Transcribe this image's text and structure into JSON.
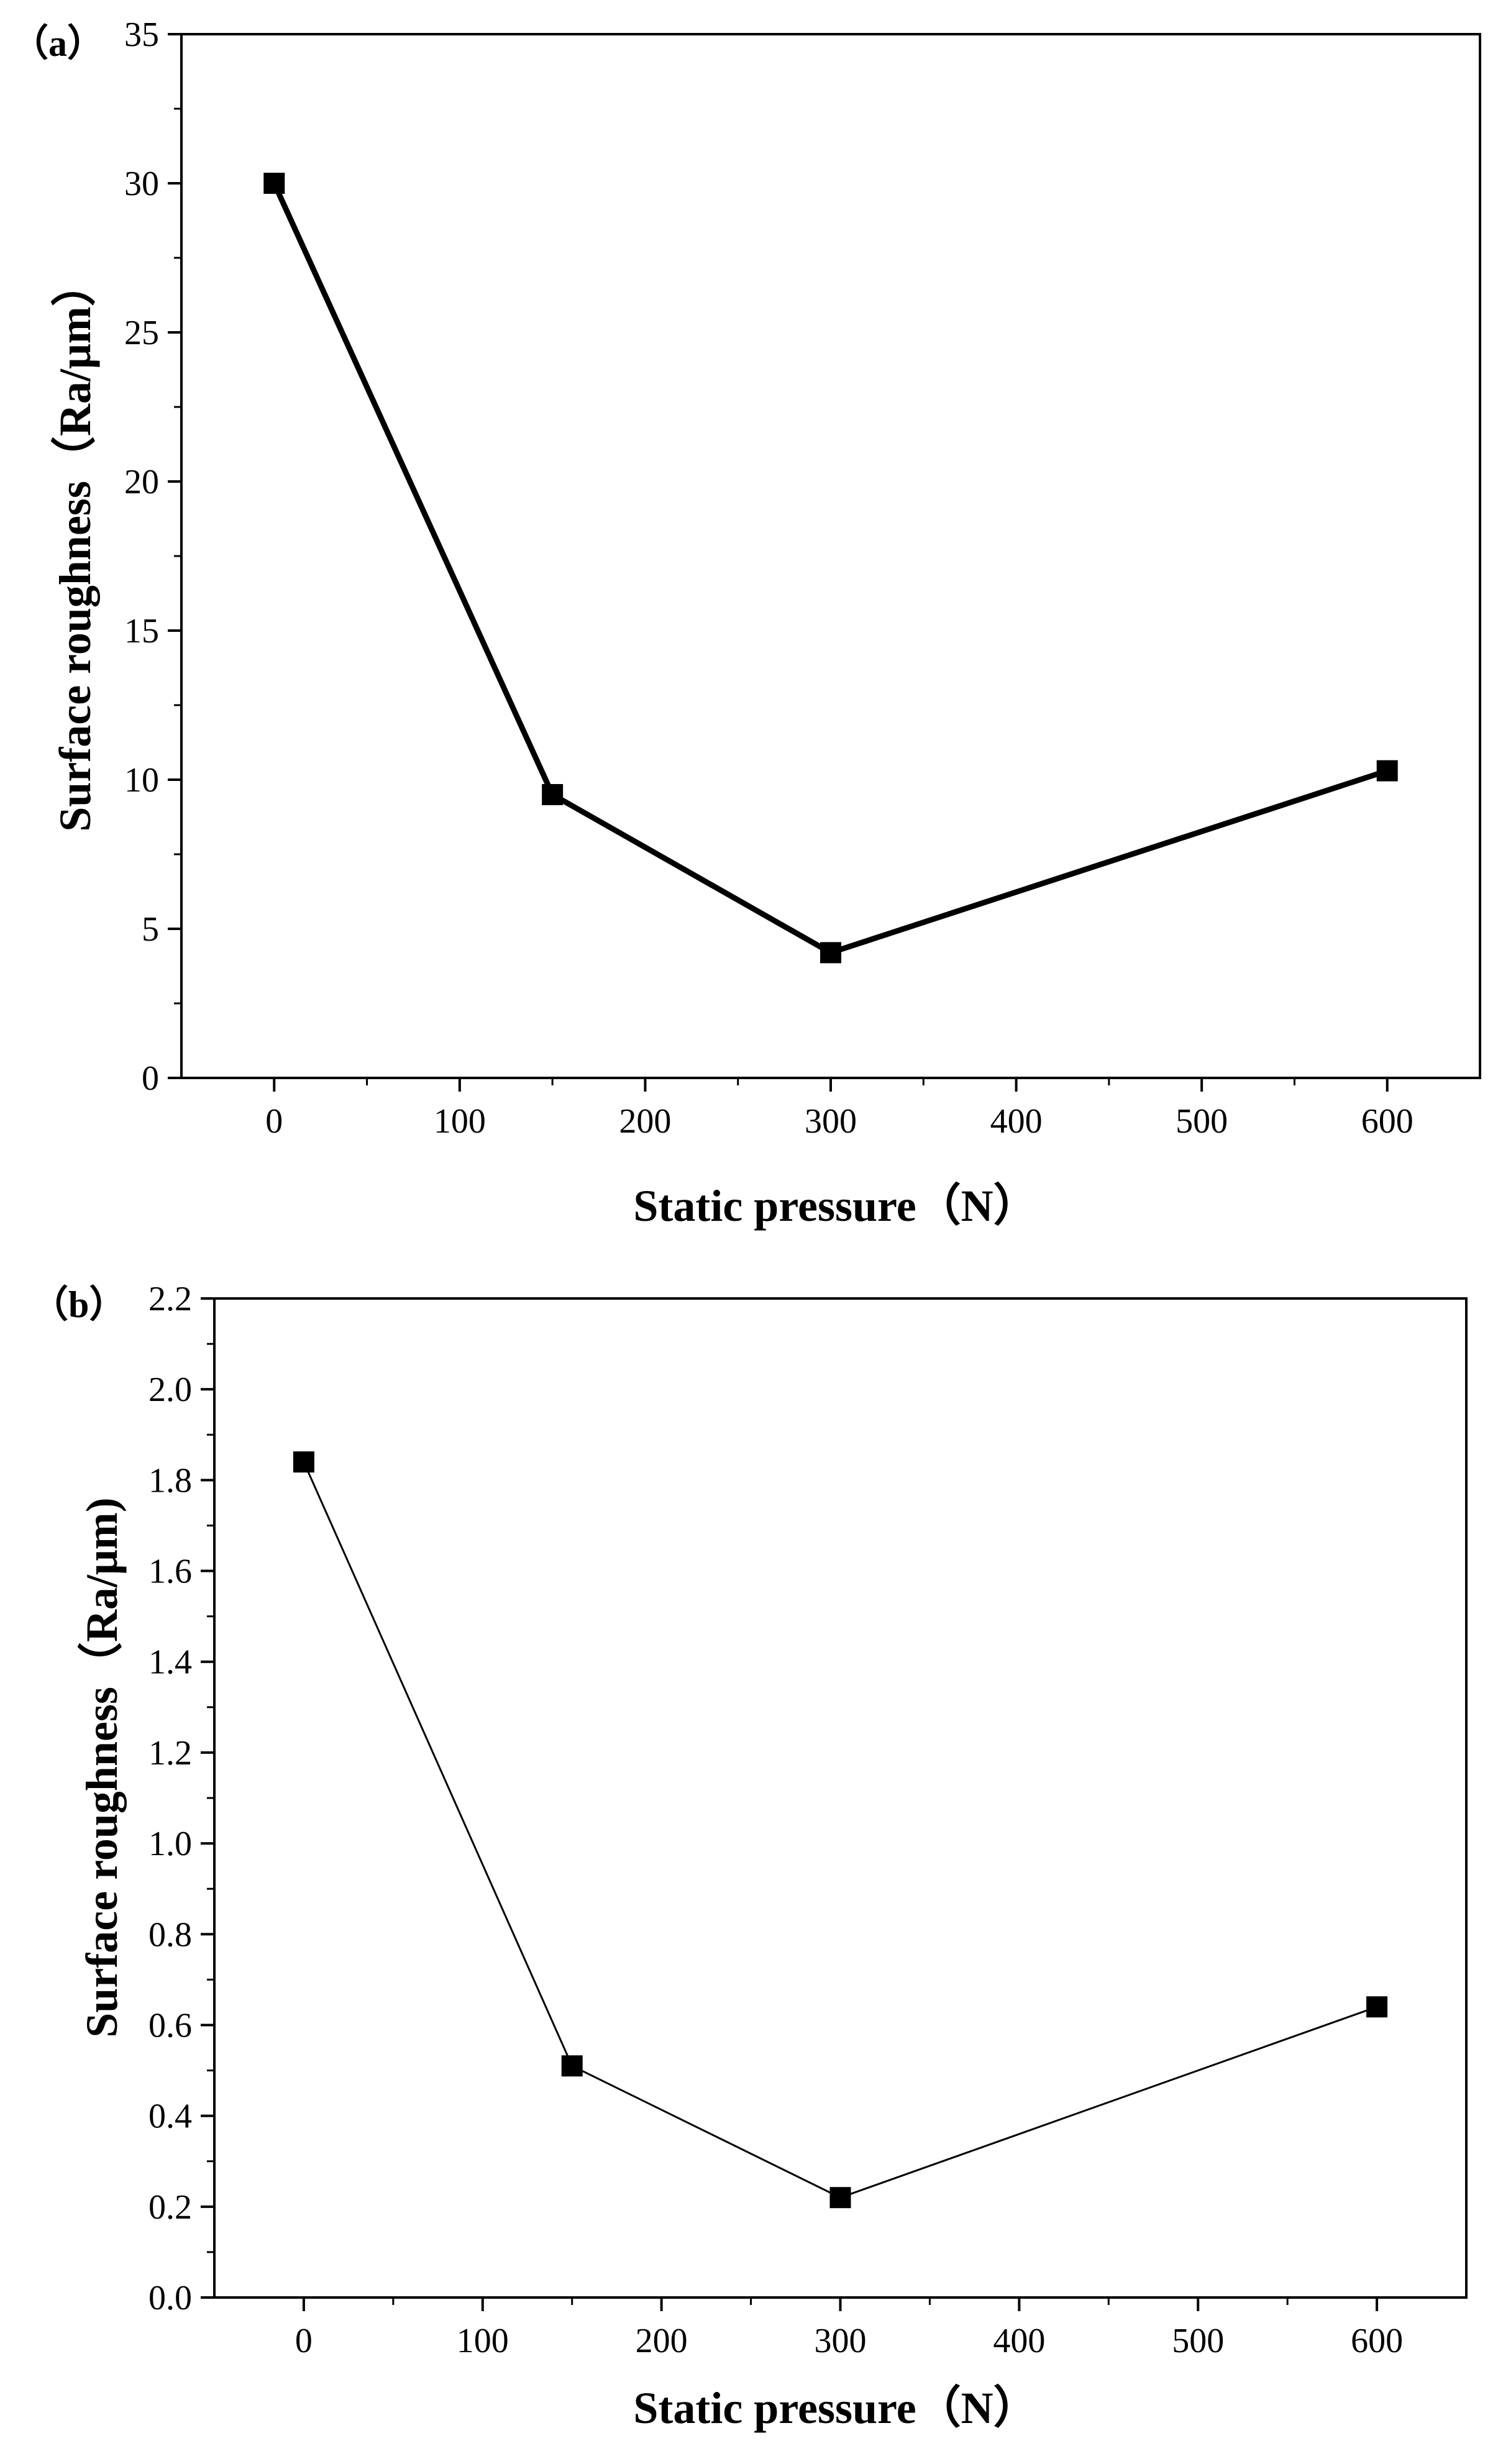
{
  "chart_data": [
    {
      "type": "line",
      "panel_label": "（a）",
      "xlabel": "Static pressure（N）",
      "ylabel": "Surface roughness（Ra/μm）",
      "xlim": [
        -50,
        650
      ],
      "ylim": [
        0,
        35
      ],
      "x_ticks": [
        0,
        100,
        200,
        300,
        400,
        500,
        600
      ],
      "x_tick_labels": [
        "0",
        "100",
        "200",
        "300",
        "400",
        "500",
        "600"
      ],
      "y_ticks": [
        0,
        5,
        10,
        15,
        20,
        25,
        30,
        35
      ],
      "y_tick_labels": [
        "0",
        "5",
        "10",
        "15",
        "20",
        "25",
        "30",
        "35"
      ],
      "series": [
        {
          "name": "Surface roughness",
          "marker": "square",
          "x": [
            0,
            150,
            300,
            600
          ],
          "values": [
            30,
            9.5,
            4.2,
            10.3
          ]
        }
      ]
    },
    {
      "type": "line",
      "panel_label": "（b）",
      "xlabel": "Static pressure（N）",
      "ylabel": "Surface roughness（Ra/μm)",
      "xlim": [
        -50,
        650
      ],
      "ylim": [
        0,
        2.2
      ],
      "x_ticks": [
        0,
        100,
        200,
        300,
        400,
        500,
        600
      ],
      "x_tick_labels": [
        "0",
        "100",
        "200",
        "300",
        "400",
        "500",
        "600"
      ],
      "y_ticks": [
        0,
        0.2,
        0.4,
        0.6,
        0.8,
        1.0,
        1.2,
        1.4,
        1.6,
        1.8,
        2.0,
        2.2
      ],
      "y_tick_labels": [
        "0.0",
        "0.2",
        "0.4",
        "0.6",
        "0.8",
        "1.0",
        "1.2",
        "1.4",
        "1.6",
        "1.8",
        "2.0",
        "2.2"
      ],
      "series": [
        {
          "name": "Surface roughness",
          "marker": "square",
          "x": [
            0,
            150,
            300,
            600
          ],
          "values": [
            1.84,
            0.51,
            0.22,
            0.64
          ]
        }
      ]
    }
  ],
  "colors": {
    "axis": "#000000",
    "line": "#000000",
    "marker": "#000000",
    "background": "#ffffff"
  }
}
